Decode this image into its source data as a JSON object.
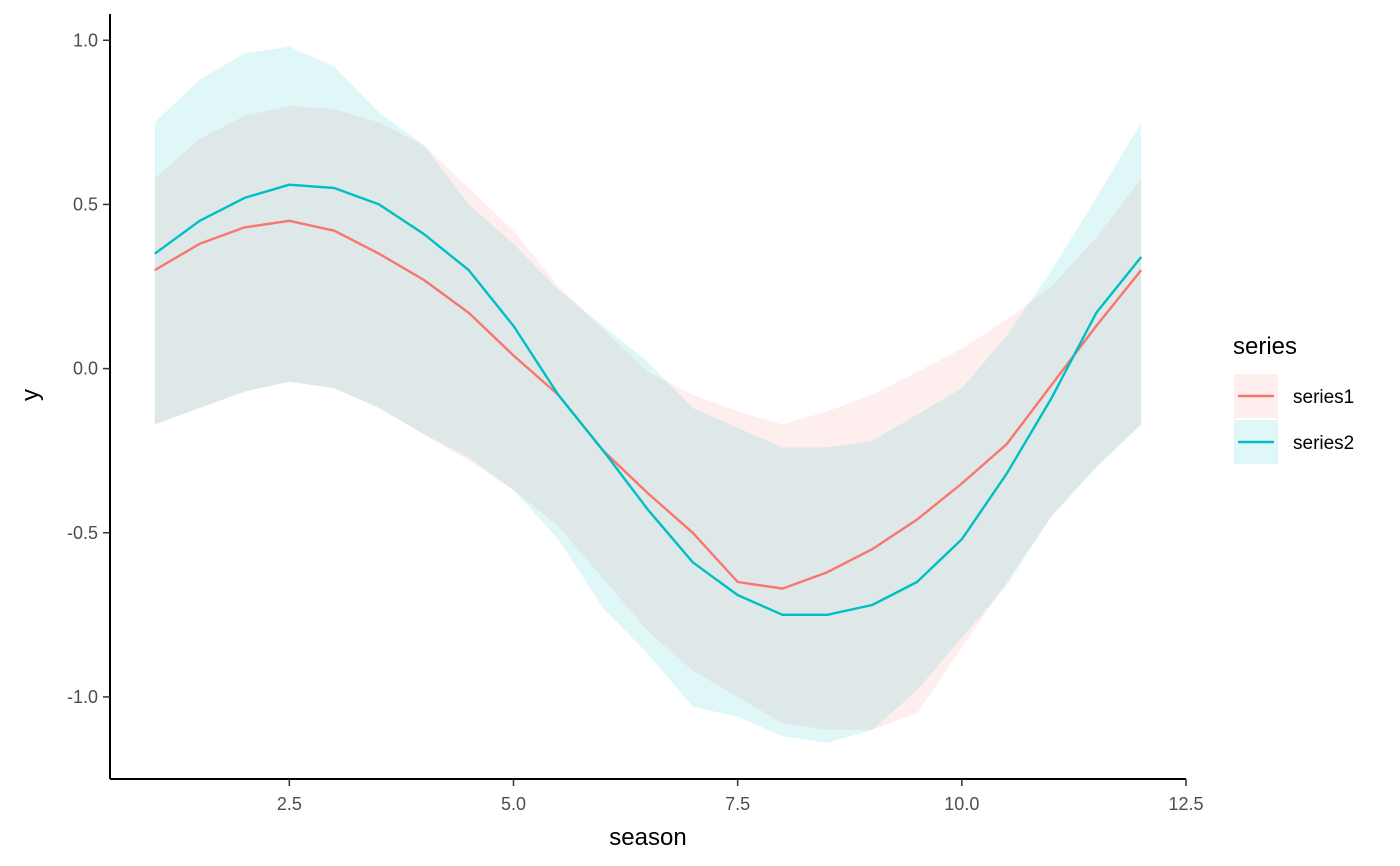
{
  "chart_data": {
    "type": "line",
    "xlabel": "season",
    "ylabel": "y",
    "xlim": [
      0.5,
      12.5
    ],
    "ylim": [
      -1.25,
      1.08
    ],
    "xticks": [
      2.5,
      5.0,
      7.5,
      10.0,
      12.5
    ],
    "xtick_labels": [
      "2.5",
      "5.0",
      "7.5",
      "10.0",
      "12.5"
    ],
    "yticks": [
      1.0,
      0.5,
      0.0,
      -0.5,
      -1.0
    ],
    "ytick_labels": [
      "1.0",
      "0.5",
      "0.0",
      "-0.5",
      "-1.0"
    ],
    "grid": false,
    "legend": {
      "title": "series",
      "position": "right"
    },
    "x": [
      1,
      1.5,
      2,
      2.5,
      3,
      3.5,
      4,
      4.5,
      5,
      5.5,
      6,
      6.5,
      7,
      7.5,
      8,
      8.5,
      9,
      9.5,
      10,
      10.5,
      11,
      11.5,
      12
    ],
    "series": [
      {
        "name": "series1",
        "color": "#F8766D",
        "fill": "#FDEBEA",
        "values": [
          0.3,
          0.38,
          0.43,
          0.45,
          0.42,
          0.35,
          0.27,
          0.17,
          0.04,
          -0.08,
          -0.25,
          -0.38,
          -0.5,
          -0.65,
          -0.67,
          -0.62,
          -0.55,
          -0.46,
          -0.35,
          -0.23,
          -0.05,
          0.13,
          0.3
        ],
        "lower": [
          -0.17,
          -0.12,
          -0.07,
          -0.04,
          -0.06,
          -0.12,
          -0.2,
          -0.28,
          -0.37,
          -0.48,
          -0.64,
          -0.8,
          -0.92,
          -1.0,
          -1.08,
          -1.1,
          -1.1,
          -1.05,
          -0.85,
          -0.65,
          -0.45,
          -0.3,
          -0.17
        ],
        "upper": [
          0.58,
          0.7,
          0.77,
          0.8,
          0.79,
          0.75,
          0.68,
          0.55,
          0.42,
          0.25,
          0.12,
          -0.01,
          -0.08,
          -0.13,
          -0.17,
          -0.13,
          -0.08,
          -0.01,
          0.06,
          0.15,
          0.25,
          0.4,
          0.58
        ]
      },
      {
        "name": "series2",
        "color": "#00BFC4",
        "fill": "#DFF5F6",
        "values": [
          0.35,
          0.45,
          0.52,
          0.56,
          0.55,
          0.5,
          0.41,
          0.3,
          0.13,
          -0.08,
          -0.25,
          -0.43,
          -0.59,
          -0.69,
          -0.75,
          -0.75,
          -0.72,
          -0.65,
          -0.52,
          -0.32,
          -0.09,
          0.17,
          0.34
        ],
        "lower": [
          -0.17,
          -0.12,
          -0.07,
          -0.04,
          -0.06,
          -0.12,
          -0.2,
          -0.27,
          -0.37,
          -0.52,
          -0.73,
          -0.87,
          -1.03,
          -1.06,
          -1.12,
          -1.14,
          -1.1,
          -0.98,
          -0.82,
          -0.66,
          -0.45,
          -0.3,
          -0.17
        ],
        "upper": [
          0.75,
          0.88,
          0.96,
          0.98,
          0.92,
          0.78,
          0.68,
          0.5,
          0.38,
          0.24,
          0.13,
          0.02,
          -0.12,
          -0.18,
          -0.24,
          -0.24,
          -0.22,
          -0.14,
          -0.06,
          0.1,
          0.3,
          0.52,
          0.75
        ]
      }
    ]
  }
}
